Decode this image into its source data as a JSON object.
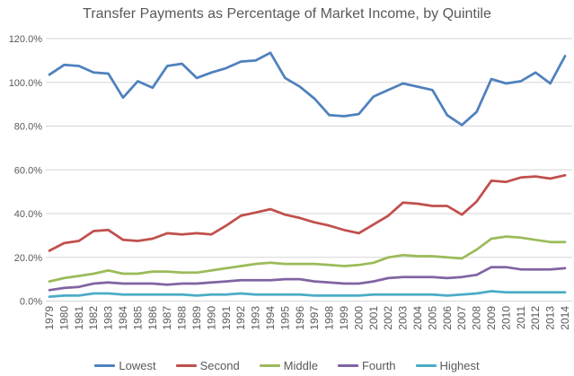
{
  "chart_data": {
    "type": "line",
    "title": "Transfer Payments as Percentage of Market Income, by Quintile",
    "xlabel": "",
    "ylabel": "",
    "x": [
      "1979",
      "1980",
      "1981",
      "1982",
      "1983",
      "1984",
      "1985",
      "1986",
      "1987",
      "1988",
      "1989",
      "1990",
      "1991",
      "1992",
      "1993",
      "1994",
      "1995",
      "1996",
      "1997",
      "1998",
      "1999",
      "2000",
      "2001",
      "2002",
      "2003",
      "2004",
      "2005",
      "2006",
      "2007",
      "2008",
      "2009",
      "2010",
      "2011",
      "2012",
      "2013",
      "2014"
    ],
    "series": [
      {
        "name": "Lowest",
        "color": "#4F81BD",
        "values": [
          103.5,
          108,
          107.5,
          104.5,
          104,
          93,
          100.5,
          97.5,
          107.5,
          108.5,
          102,
          104.5,
          106.5,
          109.5,
          110,
          113.5,
          102,
          98,
          92.5,
          85,
          84.5,
          85.5,
          93.5,
          96.5,
          99.5,
          98,
          96.5,
          85,
          80.5,
          86.5,
          101.5,
          99.5,
          100.5,
          104.5,
          99.5,
          112
        ]
      },
      {
        "name": "Second",
        "color": "#C0504D",
        "values": [
          23,
          26.5,
          27.5,
          32,
          32.5,
          28,
          27.5,
          28.5,
          31,
          30.5,
          31,
          30.5,
          34.5,
          39,
          40.5,
          42,
          39.5,
          38,
          36,
          34.5,
          32.5,
          31,
          35,
          39,
          45,
          44.5,
          43.5,
          43.5,
          39.5,
          45.5,
          55,
          54.5,
          56.5,
          57,
          56,
          57.5
        ]
      },
      {
        "name": "Middle",
        "color": "#9BBB59",
        "values": [
          9,
          10.5,
          11.5,
          12.5,
          14,
          12.5,
          12.5,
          13.5,
          13.5,
          13,
          13,
          14,
          15,
          16,
          17,
          17.5,
          17,
          17,
          17,
          16.5,
          16,
          16.5,
          17.5,
          20,
          21,
          20.5,
          20.5,
          20,
          19.5,
          23.5,
          28.5,
          29.5,
          29,
          28,
          27,
          27
        ]
      },
      {
        "name": "Fourth",
        "color": "#8064A2",
        "values": [
          5,
          6,
          6.5,
          8,
          8.5,
          8,
          8,
          8,
          7.5,
          8,
          8,
          8.5,
          9,
          9.5,
          9.5,
          9.5,
          10,
          10,
          9,
          8.5,
          8,
          8,
          9,
          10.5,
          11,
          11,
          11,
          10.5,
          11,
          12,
          15.5,
          15.5,
          14.5,
          14.5,
          14.5,
          15
        ]
      },
      {
        "name": "Highest",
        "color": "#4BACC6",
        "values": [
          2,
          2.5,
          2.5,
          3.5,
          3.5,
          3,
          3,
          3,
          3,
          3,
          2.5,
          3,
          3,
          3.5,
          3,
          3,
          3,
          3,
          2.5,
          2.5,
          2.5,
          2.5,
          3,
          3,
          3,
          3,
          3,
          2.5,
          3,
          3.5,
          4.5,
          4,
          4,
          4,
          4,
          4
        ]
      }
    ],
    "ylim": [
      0,
      120
    ],
    "y_ticks": [
      {
        "value": 0,
        "label": "0.0%"
      },
      {
        "value": 20,
        "label": "20.0%"
      },
      {
        "value": 40,
        "label": "40.0%"
      },
      {
        "value": 60,
        "label": "60.0%"
      },
      {
        "value": 80,
        "label": "80.0%"
      },
      {
        "value": 100,
        "label": "100.0%"
      },
      {
        "value": 120,
        "label": "120.0%"
      }
    ],
    "grid": true,
    "legend_position": "bottom"
  },
  "style": {
    "grid_color": "#D6D6D6",
    "tick_label_color": "#595959",
    "title_color": "#595959"
  }
}
